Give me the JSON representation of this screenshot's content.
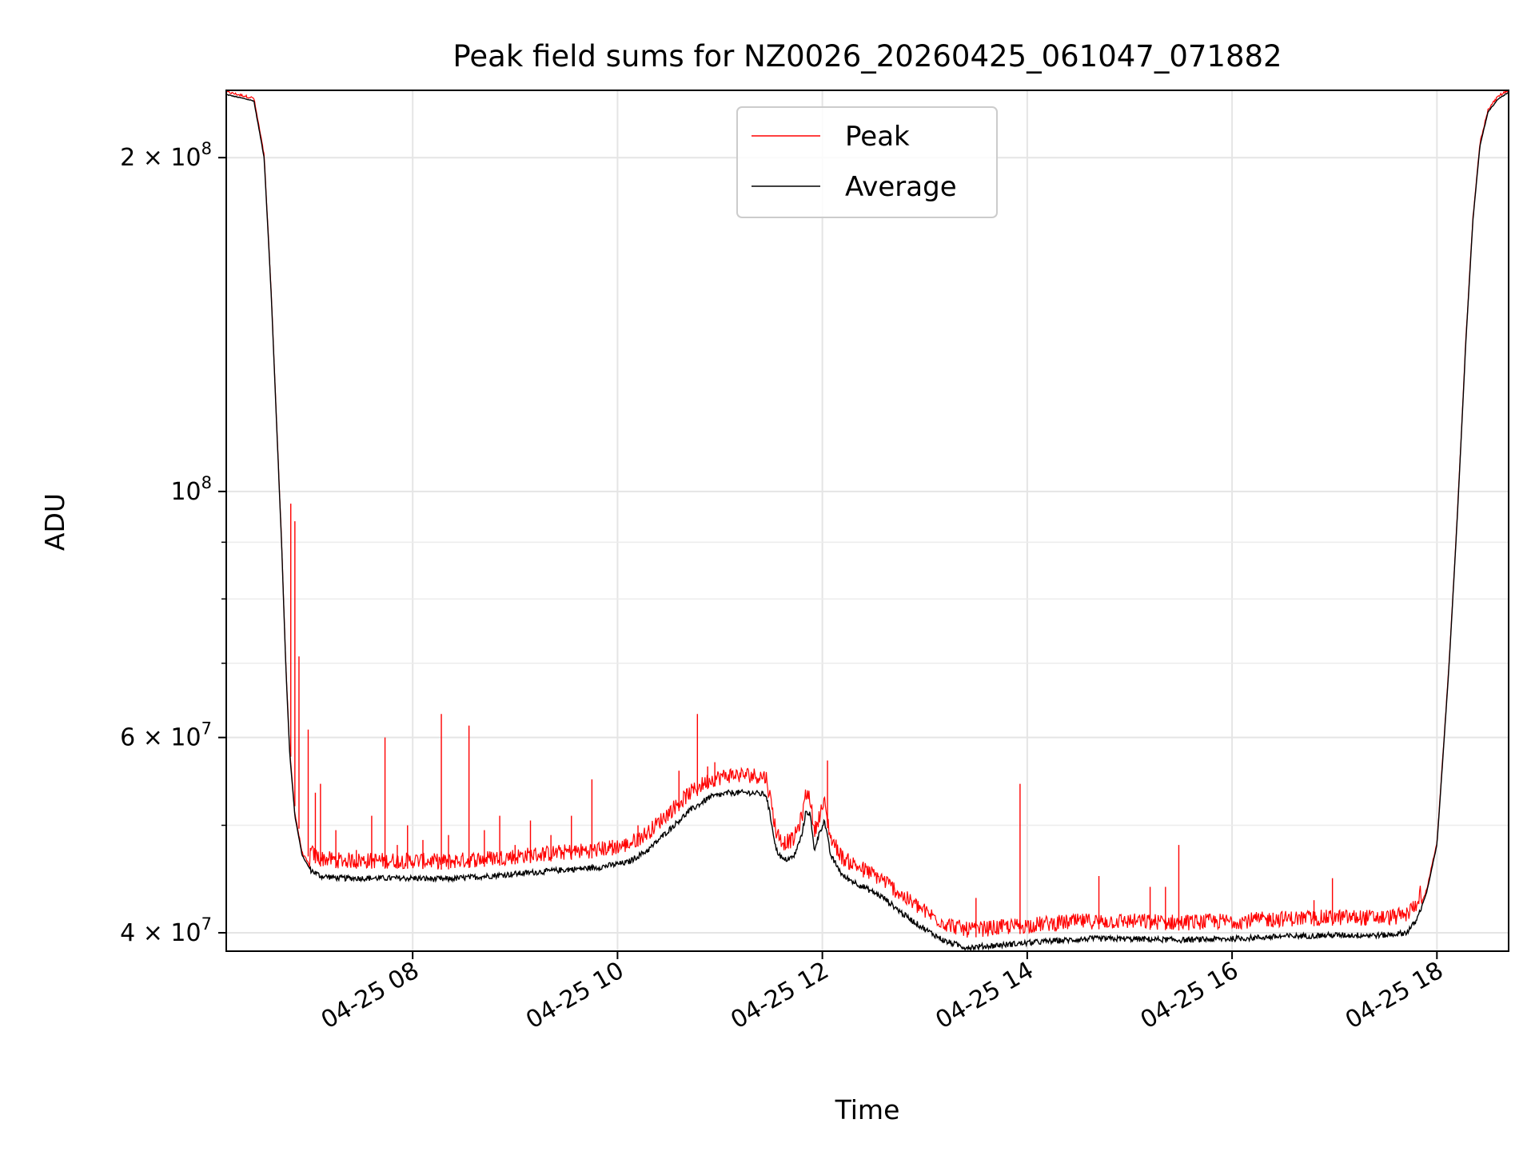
{
  "chart_data": {
    "type": "line",
    "title": "Peak field sums for NZ0026_20260425_061047_071882",
    "xlabel": "Time",
    "ylabel": "ADU",
    "yscale": "log",
    "xlim_hours": [
      6.18,
      18.7
    ],
    "ylim": [
      38500000,
      230000000
    ],
    "grid": true,
    "legend_position": "top-center",
    "x_ticks": [
      {
        "hour": 8,
        "label": "04-25 08"
      },
      {
        "hour": 10,
        "label": "04-25 10"
      },
      {
        "hour": 12,
        "label": "04-25 12"
      },
      {
        "hour": 14,
        "label": "04-25 14"
      },
      {
        "hour": 16,
        "label": "04-25 16"
      },
      {
        "hour": 18,
        "label": "04-25 18"
      }
    ],
    "y_ticks": [
      {
        "value": 40000000,
        "base": "4 × 10",
        "exp": "7"
      },
      {
        "value": 60000000,
        "base": "6 × 10",
        "exp": "7"
      },
      {
        "value": 100000000,
        "base": "10",
        "exp": "8"
      },
      {
        "value": 200000000,
        "base": "2 × 10",
        "exp": "8"
      }
    ],
    "y_minor_ticks": [
      50000000,
      70000000,
      80000000,
      90000000
    ],
    "series": [
      {
        "name": "Average",
        "color": "#000000",
        "points": [
          [
            6.18,
            228000000
          ],
          [
            6.45,
            225000000
          ],
          [
            6.55,
            200000000
          ],
          [
            6.62,
            150000000
          ],
          [
            6.68,
            110000000
          ],
          [
            6.72,
            90000000
          ],
          [
            6.76,
            70000000
          ],
          [
            6.8,
            58000000
          ],
          [
            6.85,
            51000000
          ],
          [
            6.92,
            47000000
          ],
          [
            7.0,
            45600000
          ],
          [
            7.1,
            45000000
          ],
          [
            7.3,
            44800000
          ],
          [
            7.6,
            44800000
          ],
          [
            8.0,
            44800000
          ],
          [
            8.3,
            44700000
          ],
          [
            8.6,
            44900000
          ],
          [
            9.0,
            45200000
          ],
          [
            9.5,
            45600000
          ],
          [
            9.8,
            45800000
          ],
          [
            10.1,
            46300000
          ],
          [
            10.3,
            47500000
          ],
          [
            10.5,
            49500000
          ],
          [
            10.7,
            51500000
          ],
          [
            10.9,
            53000000
          ],
          [
            11.1,
            53500000
          ],
          [
            11.3,
            53500000
          ],
          [
            11.45,
            53300000
          ],
          [
            11.5,
            50500000
          ],
          [
            11.55,
            47500000
          ],
          [
            11.62,
            46500000
          ],
          [
            11.72,
            46800000
          ],
          [
            11.8,
            49000000
          ],
          [
            11.84,
            51500000
          ],
          [
            11.88,
            51200000
          ],
          [
            11.92,
            47500000
          ],
          [
            11.98,
            49500000
          ],
          [
            12.02,
            50500000
          ],
          [
            12.08,
            47000000
          ],
          [
            12.2,
            45000000
          ],
          [
            12.4,
            44000000
          ],
          [
            12.6,
            43000000
          ],
          [
            12.8,
            41500000
          ],
          [
            13.0,
            40300000
          ],
          [
            13.2,
            39300000
          ],
          [
            13.4,
            38800000
          ],
          [
            13.6,
            38900000
          ],
          [
            13.9,
            39100000
          ],
          [
            14.2,
            39300000
          ],
          [
            14.6,
            39500000
          ],
          [
            15.0,
            39500000
          ],
          [
            15.5,
            39400000
          ],
          [
            16.0,
            39500000
          ],
          [
            16.5,
            39700000
          ],
          [
            17.0,
            39800000
          ],
          [
            17.5,
            39800000
          ],
          [
            17.7,
            40000000
          ],
          [
            17.8,
            41000000
          ],
          [
            17.9,
            43500000
          ],
          [
            18.0,
            48000000
          ],
          [
            18.05,
            56000000
          ],
          [
            18.12,
            70000000
          ],
          [
            18.2,
            95000000
          ],
          [
            18.28,
            135000000
          ],
          [
            18.35,
            175000000
          ],
          [
            18.42,
            205000000
          ],
          [
            18.5,
            220000000
          ],
          [
            18.6,
            226000000
          ],
          [
            18.7,
            229000000
          ]
        ]
      },
      {
        "name": "Peak",
        "color": "#ff0000",
        "spikes": [
          [
            6.81,
            97500000
          ],
          [
            6.85,
            94000000
          ],
          [
            6.89,
            71000000
          ],
          [
            6.98,
            61000000
          ],
          [
            7.05,
            53500000
          ],
          [
            7.1,
            54500000
          ],
          [
            7.25,
            49500000
          ],
          [
            7.45,
            47500000
          ],
          [
            7.6,
            51000000
          ],
          [
            7.73,
            60000000
          ],
          [
            7.85,
            48000000
          ],
          [
            7.95,
            50000000
          ],
          [
            8.1,
            48500000
          ],
          [
            8.28,
            63000000
          ],
          [
            8.35,
            49000000
          ],
          [
            8.55,
            61500000
          ],
          [
            8.7,
            49500000
          ],
          [
            8.85,
            51000000
          ],
          [
            9.0,
            48000000
          ],
          [
            9.15,
            50500000
          ],
          [
            9.35,
            49000000
          ],
          [
            9.55,
            51000000
          ],
          [
            9.75,
            55000000
          ],
          [
            9.95,
            48500000
          ],
          [
            10.2,
            50000000
          ],
          [
            10.6,
            56000000
          ],
          [
            10.78,
            63000000
          ],
          [
            10.88,
            56500000
          ],
          [
            10.95,
            57000000
          ],
          [
            12.05,
            57200000
          ],
          [
            12.4,
            45500000
          ],
          [
            13.5,
            43000000
          ],
          [
            13.93,
            54500000
          ],
          [
            14.7,
            45000000
          ],
          [
            15.2,
            44000000
          ],
          [
            15.35,
            44000000
          ],
          [
            15.48,
            48000000
          ],
          [
            16.4,
            41700000
          ],
          [
            16.8,
            42800000
          ],
          [
            16.98,
            44800000
          ],
          [
            17.3,
            41500000
          ],
          [
            17.6,
            41500000
          ]
        ]
      }
    ]
  }
}
